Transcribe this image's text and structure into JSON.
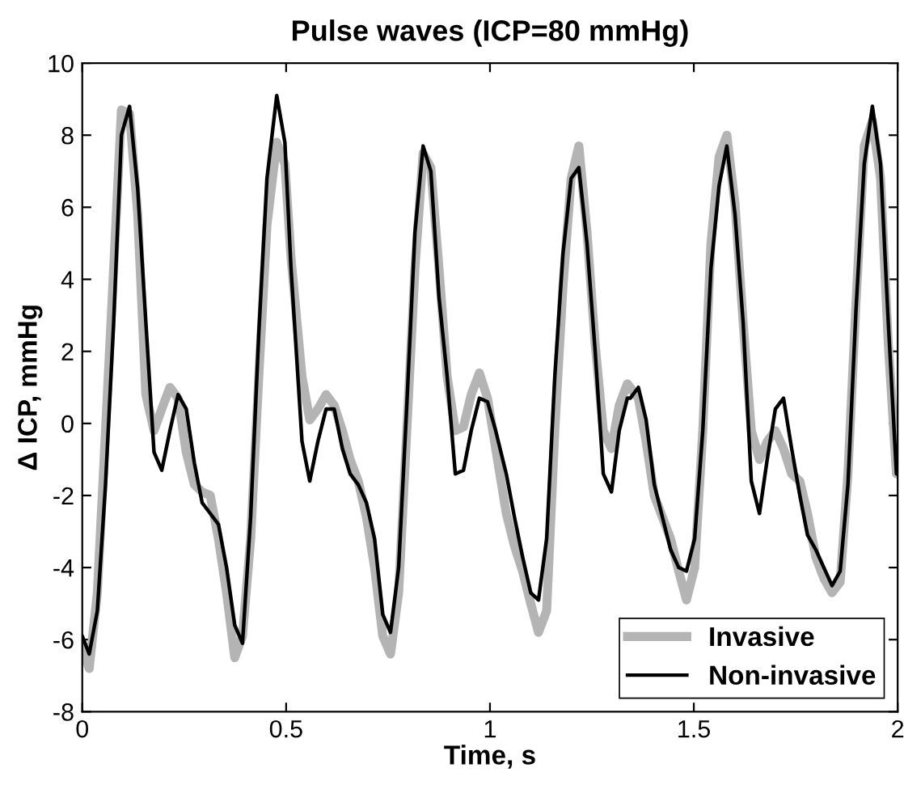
{
  "chart_data": {
    "type": "line",
    "title": "Pulse waves (ICP=80 mmHg)",
    "xlabel": "Time, s",
    "ylabel": "Δ ICP, mmHg",
    "x": [
      0,
      0.017,
      0.037,
      0.057,
      0.077,
      0.096,
      0.116,
      0.136,
      0.156,
      0.176,
      0.195,
      0.215,
      0.235,
      0.255,
      0.275,
      0.294,
      0.314,
      0.334,
      0.354,
      0.374,
      0.393,
      0.413,
      0.433,
      0.453,
      0.477,
      0.497,
      0.512,
      0.539,
      0.558,
      0.578,
      0.598,
      0.618,
      0.638,
      0.657,
      0.677,
      0.697,
      0.717,
      0.737,
      0.756,
      0.776,
      0.796,
      0.816,
      0.836,
      0.855,
      0.875,
      0.895,
      0.915,
      0.935,
      0.954,
      0.974,
      0.994,
      1.014,
      1.04,
      1.06,
      1.08,
      1.1,
      1.119,
      1.139,
      1.159,
      1.179,
      1.199,
      1.218,
      1.238,
      1.258,
      1.278,
      1.298,
      1.317,
      1.337,
      1.344,
      1.364,
      1.383,
      1.403,
      1.423,
      1.443,
      1.463,
      1.482,
      1.502,
      1.522,
      1.542,
      1.562,
      1.581,
      1.601,
      1.621,
      1.641,
      1.661,
      1.68,
      1.7,
      1.72,
      1.74,
      1.76,
      1.779,
      1.799,
      1.819,
      1.839,
      1.859,
      1.878,
      1.898,
      1.918,
      1.938,
      1.958,
      1.977,
      1.997
    ],
    "series": [
      {
        "name": "Invasive",
        "color": "#b4b4b4",
        "values": [
          -6.2,
          -6.8,
          -4.7,
          -0.2,
          4.3,
          8.7,
          8.6,
          5.8,
          0.8,
          -0.2,
          0.4,
          1.0,
          0.7,
          -0.8,
          -1.7,
          -1.9,
          -2.0,
          -3.2,
          -4.7,
          -6.5,
          -5.9,
          -3.2,
          1.3,
          5.5,
          7.8,
          7.2,
          4.6,
          1.3,
          0.1,
          0.4,
          0.8,
          0.5,
          -0.2,
          -1.0,
          -1.6,
          -2.6,
          -4.0,
          -5.9,
          -6.4,
          -4.7,
          -0.2,
          4.3,
          7.5,
          7.1,
          4.3,
          1.3,
          -0.2,
          -0.1,
          0.8,
          1.4,
          0.7,
          -0.7,
          -2.5,
          -3.4,
          -4.1,
          -5.0,
          -5.8,
          -5.2,
          -0.2,
          3.8,
          6.8,
          7.7,
          5.3,
          2.2,
          -0.2,
          -0.7,
          0.5,
          1.1,
          1.0,
          0.7,
          -0.5,
          -2.0,
          -2.6,
          -3.2,
          -4.1,
          -4.9,
          -4.0,
          -0.2,
          5.0,
          7.4,
          8.0,
          6.1,
          2.8,
          -0.2,
          -1.0,
          -0.5,
          -0.2,
          -0.7,
          -1.4,
          -1.6,
          -2.5,
          -3.7,
          -4.3,
          -4.7,
          -4.4,
          -1.4,
          3.4,
          7.7,
          8.4,
          6.8,
          2.2,
          -1.4
        ]
      },
      {
        "name": "Non-invasive",
        "color": "#000000",
        "values": [
          -5.9,
          -6.4,
          -5.2,
          -1.7,
          2.8,
          8.0,
          8.8,
          6.5,
          2.8,
          -0.8,
          -1.3,
          -0.2,
          0.8,
          0.4,
          -1.1,
          -2.2,
          -2.5,
          -2.8,
          -4.0,
          -5.6,
          -6.1,
          -2.6,
          2.5,
          6.8,
          9.1,
          7.8,
          4.3,
          -0.5,
          -1.6,
          -0.5,
          0.4,
          0.4,
          -0.7,
          -1.4,
          -1.7,
          -2.2,
          -3.2,
          -5.3,
          -5.8,
          -4.0,
          0.5,
          5.3,
          7.7,
          7.0,
          3.5,
          1.3,
          -1.4,
          -1.3,
          -0.2,
          0.7,
          0.6,
          -0.2,
          -1.4,
          -2.6,
          -3.7,
          -4.7,
          -4.9,
          -3.2,
          1.3,
          4.7,
          6.8,
          7.1,
          5.0,
          2.0,
          -1.4,
          -1.9,
          -0.2,
          0.7,
          0.7,
          1.0,
          0.1,
          -1.7,
          -2.6,
          -3.5,
          -4.0,
          -4.1,
          -3.2,
          -0.2,
          4.3,
          6.6,
          7.7,
          5.8,
          2.8,
          -1.6,
          -2.5,
          -1.0,
          0.4,
          0.7,
          -0.7,
          -2.0,
          -3.1,
          -3.5,
          -4.0,
          -4.5,
          -4.1,
          -1.7,
          3.2,
          7.2,
          8.8,
          7.2,
          2.8,
          -1.4
        ]
      }
    ],
    "xlim": [
      0,
      2
    ],
    "xticks": [
      0,
      0.5,
      1,
      1.5,
      2
    ],
    "ylim": [
      -8,
      10
    ],
    "yticks": [
      -8,
      -6,
      -4,
      -2,
      0,
      2,
      4,
      6,
      8,
      10
    ],
    "legend": "bottom right",
    "grid": false,
    "marker": "none",
    "line_style": "solid"
  }
}
